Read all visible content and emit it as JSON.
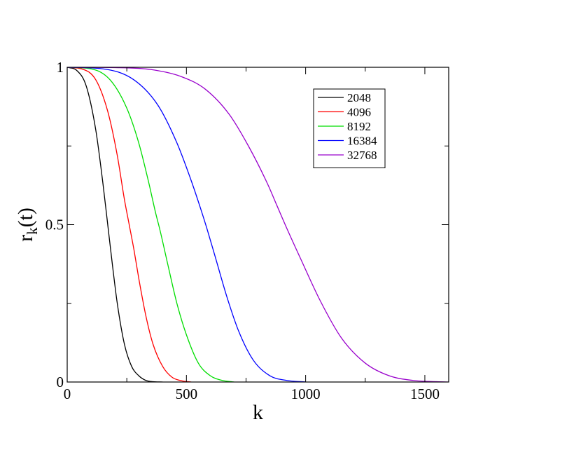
{
  "chart_data": {
    "type": "line",
    "title": "",
    "xlabel": "k",
    "ylabel_main": "r",
    "ylabel_sub": "k",
    "ylabel_tail": "(t)",
    "xlim": [
      0,
      1600
    ],
    "ylim": [
      0,
      1
    ],
    "x_ticks": [
      0,
      500,
      1000,
      1500
    ],
    "x_tick_labels": [
      "0",
      "500",
      "1000",
      "1500"
    ],
    "y_ticks": [
      0,
      0.5,
      1
    ],
    "y_tick_labels": [
      "0",
      "0.5",
      "1"
    ],
    "grid": false,
    "legend_position": "top-right",
    "series": [
      {
        "name": "2048",
        "color": "#000000",
        "x": [
          0,
          40,
          80,
          120,
          150,
          170,
          190,
          210,
          240,
          270,
          300,
          330,
          360,
          400
        ],
        "y": [
          1,
          0.99,
          0.94,
          0.8,
          0.63,
          0.5,
          0.37,
          0.25,
          0.12,
          0.05,
          0.02,
          0.005,
          0.001,
          0
        ]
      },
      {
        "name": "4096",
        "color": "#ff0000",
        "x": [
          0,
          60,
          120,
          170,
          210,
          240,
          260,
          280,
          300,
          330,
          360,
          400,
          440,
          480,
          520
        ],
        "y": [
          1,
          0.995,
          0.96,
          0.86,
          0.72,
          0.58,
          0.5,
          0.42,
          0.33,
          0.21,
          0.12,
          0.05,
          0.015,
          0.004,
          0
        ]
      },
      {
        "name": "8192",
        "color": "#00dd00",
        "x": [
          0,
          100,
          180,
          250,
          300,
          340,
          370,
          390,
          420,
          460,
          500,
          550,
          600,
          650,
          700
        ],
        "y": [
          1,
          0.995,
          0.96,
          0.87,
          0.76,
          0.64,
          0.54,
          0.48,
          0.38,
          0.25,
          0.15,
          0.06,
          0.02,
          0.005,
          0
        ]
      },
      {
        "name": "16384",
        "color": "#0000ff",
        "x": [
          0,
          150,
          280,
          380,
          460,
          520,
          560,
          585,
          620,
          670,
          720,
          780,
          850,
          920,
          1000
        ],
        "y": [
          1,
          0.995,
          0.96,
          0.88,
          0.76,
          0.64,
          0.55,
          0.49,
          0.4,
          0.27,
          0.16,
          0.07,
          0.02,
          0.005,
          0
        ]
      },
      {
        "name": "32768",
        "color": "#9900cc",
        "x": [
          0,
          200,
          350,
          480,
          580,
          680,
          760,
          840,
          880,
          920,
          980,
          1060,
          1150,
          1250,
          1350,
          1450,
          1550,
          1600
        ],
        "y": [
          1,
          0.999,
          0.993,
          0.97,
          0.93,
          0.85,
          0.75,
          0.63,
          0.56,
          0.49,
          0.39,
          0.26,
          0.14,
          0.06,
          0.02,
          0.005,
          0.001,
          0
        ]
      }
    ]
  }
}
